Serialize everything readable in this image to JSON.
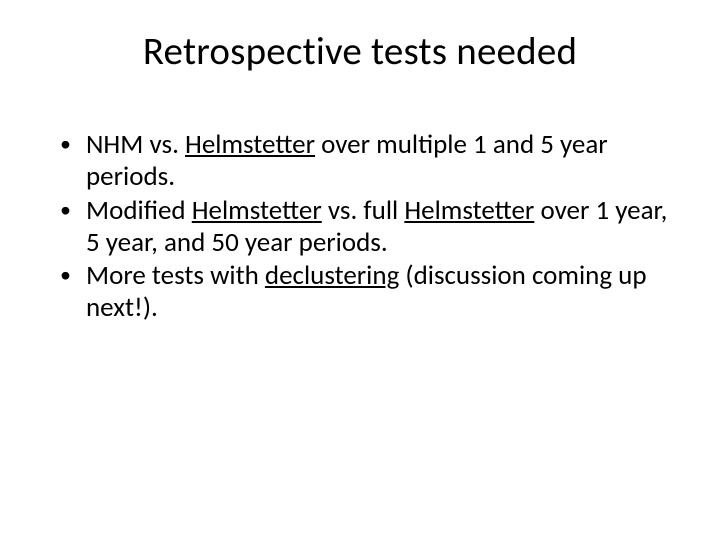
{
  "slide": {
    "title": "Retrospective tests needed",
    "bullets": [
      {
        "parts": [
          {
            "text": "NHM vs. ",
            "underline": false
          },
          {
            "text": "Helmstetter",
            "underline": true
          },
          {
            "text": " over multiple 1 and 5 year periods.",
            "underline": false
          }
        ]
      },
      {
        "parts": [
          {
            "text": "Modified ",
            "underline": false
          },
          {
            "text": "Helmstetter",
            "underline": true
          },
          {
            "text": " vs. full ",
            "underline": false
          },
          {
            "text": "Helmstetter",
            "underline": true
          },
          {
            "text": " over 1 year, 5 year, and 50 year periods.",
            "underline": false
          }
        ]
      },
      {
        "parts": [
          {
            "text": "More tests with ",
            "underline": false
          },
          {
            "text": "declustering",
            "underline": true
          },
          {
            "text": " (discussion coming up next!).",
            "underline": false
          }
        ]
      }
    ],
    "colors": {
      "background": "#ffffff",
      "text": "#000000"
    },
    "typography": {
      "title_fontsize": 39,
      "body_fontsize": 27,
      "font_family": "Calibri"
    }
  }
}
